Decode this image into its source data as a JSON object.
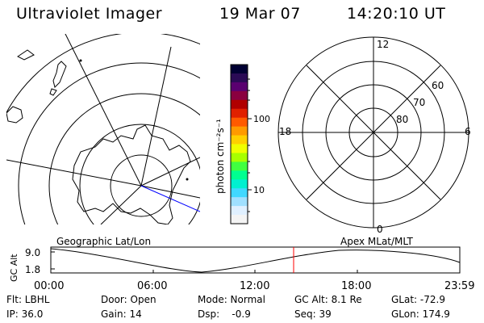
{
  "header": {
    "title": "Ultraviolet Imager",
    "date": "19 Mar 07",
    "time": "14:20:10 UT"
  },
  "colorbar": {
    "unit_label": "photon cm⁻²s⁻¹",
    "ticks": [
      "100",
      "10"
    ],
    "scale": "log",
    "colors": [
      "#000033",
      "#2a0a55",
      "#5a0070",
      "#8a0040",
      "#b00000",
      "#e02000",
      "#ff5a00",
      "#ff9a00",
      "#ffd000",
      "#f0ff00",
      "#a8ff00",
      "#40ff40",
      "#00ff90",
      "#00f0d0",
      "#40d8ff",
      "#a0e0ff",
      "#e0f0ff",
      "#f4f4f4"
    ]
  },
  "left_map": {
    "label": "Geographic Lat/Lon",
    "colors": {
      "coast": "#000000",
      "grid": "#000000",
      "track": "#0000ff"
    }
  },
  "right_map": {
    "label": "Apex MLat/MLT",
    "mlt_labels": {
      "top": "12",
      "left": "18",
      "right": "6",
      "bottom": "0"
    },
    "mlat_labels": [
      "60",
      "70",
      "80"
    ]
  },
  "altitude_plot": {
    "ylabel": "GC Alt",
    "yticks": [
      "9.0",
      "1.8"
    ],
    "xticks": [
      "00:00",
      "06:00",
      "12:00",
      "18:00",
      "23:59"
    ],
    "marker_color": "#ff0000",
    "marker_time": "14:20"
  },
  "footer": {
    "filter": "Flt: LBHL",
    "door": "Door: Open",
    "mode": "Mode: Normal",
    "gc_alt": "GC Alt: 8.1 Re",
    "glat": "GLat: -72.9",
    "ip": "IP: 36.0",
    "gain": "Gain: 14",
    "dsp": "Dsp:    -0.9",
    "seq": "Seq: 39",
    "glon": "GLon: 174.9"
  }
}
